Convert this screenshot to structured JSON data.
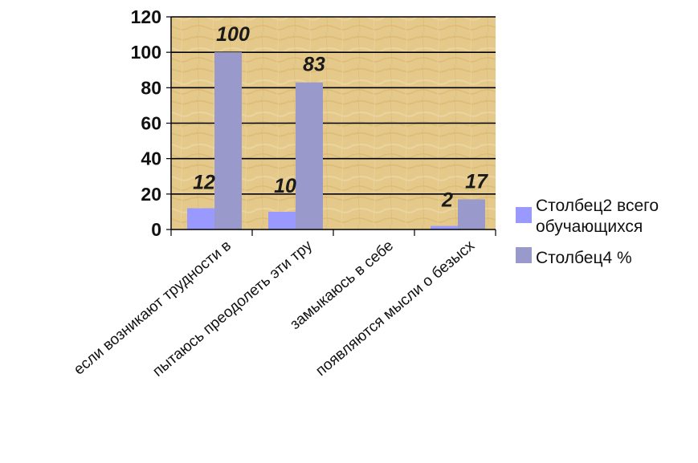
{
  "chart_data": {
    "type": "bar",
    "categories": [
      "если возникают трудности в",
      "пытаюсь преодолеть эти тру",
      "замыкаюсь в себе",
      "появляются мысли о безысх"
    ],
    "series": [
      {
        "name": "Столбец2 всего обучающихся",
        "values": [
          12,
          10,
          0,
          2
        ],
        "data_labels": [
          "12",
          "10",
          "",
          "2"
        ],
        "color": "#9999ff"
      },
      {
        "name": "Столбец4 %",
        "values": [
          100,
          83,
          0,
          17
        ],
        "data_labels": [
          "100",
          "83",
          "",
          "17"
        ],
        "color": "#9999cc"
      }
    ],
    "ylim": [
      0,
      120
    ],
    "yticks": [
      "0",
      "20",
      "40",
      "60",
      "80",
      "100",
      "120"
    ],
    "grid": true,
    "legend_position": "right",
    "plot_background": "#e3c98c"
  }
}
